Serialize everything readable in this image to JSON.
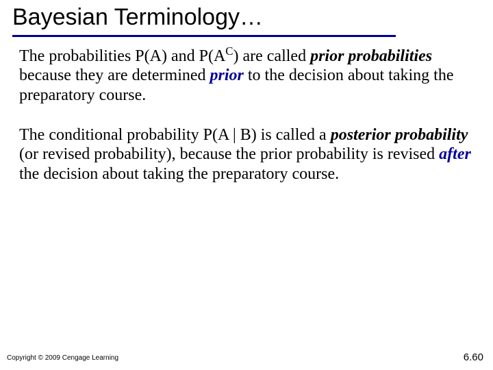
{
  "colors": {
    "accent": "#000099",
    "text": "#000000",
    "background": "#ffffff"
  },
  "typography": {
    "title_font": "Arial",
    "body_font": "Times New Roman",
    "title_size_pt": 26,
    "body_size_pt": 18,
    "footer_size_pt": 8
  },
  "title": "Bayesian Terminology…",
  "paragraphs": {
    "p1": {
      "seg1": "The probabilities P(A) and P(A",
      "sup": "C",
      "seg2": ") are called ",
      "em1": "prior probabilities",
      "seg3": " because they are determined ",
      "em2": "prior",
      "seg4": " to the decision about taking the preparatory course."
    },
    "p2": {
      "seg1": "The conditional probability P(A | B) is called a ",
      "em1": "posterior probability",
      "seg2": " (or revised probability), because the prior probability is revised ",
      "em2": "after",
      "seg3": " the decision about taking the preparatory course."
    }
  },
  "footer": {
    "copyright": "Copyright © 2009 Cengage Learning",
    "page": "6.60"
  }
}
